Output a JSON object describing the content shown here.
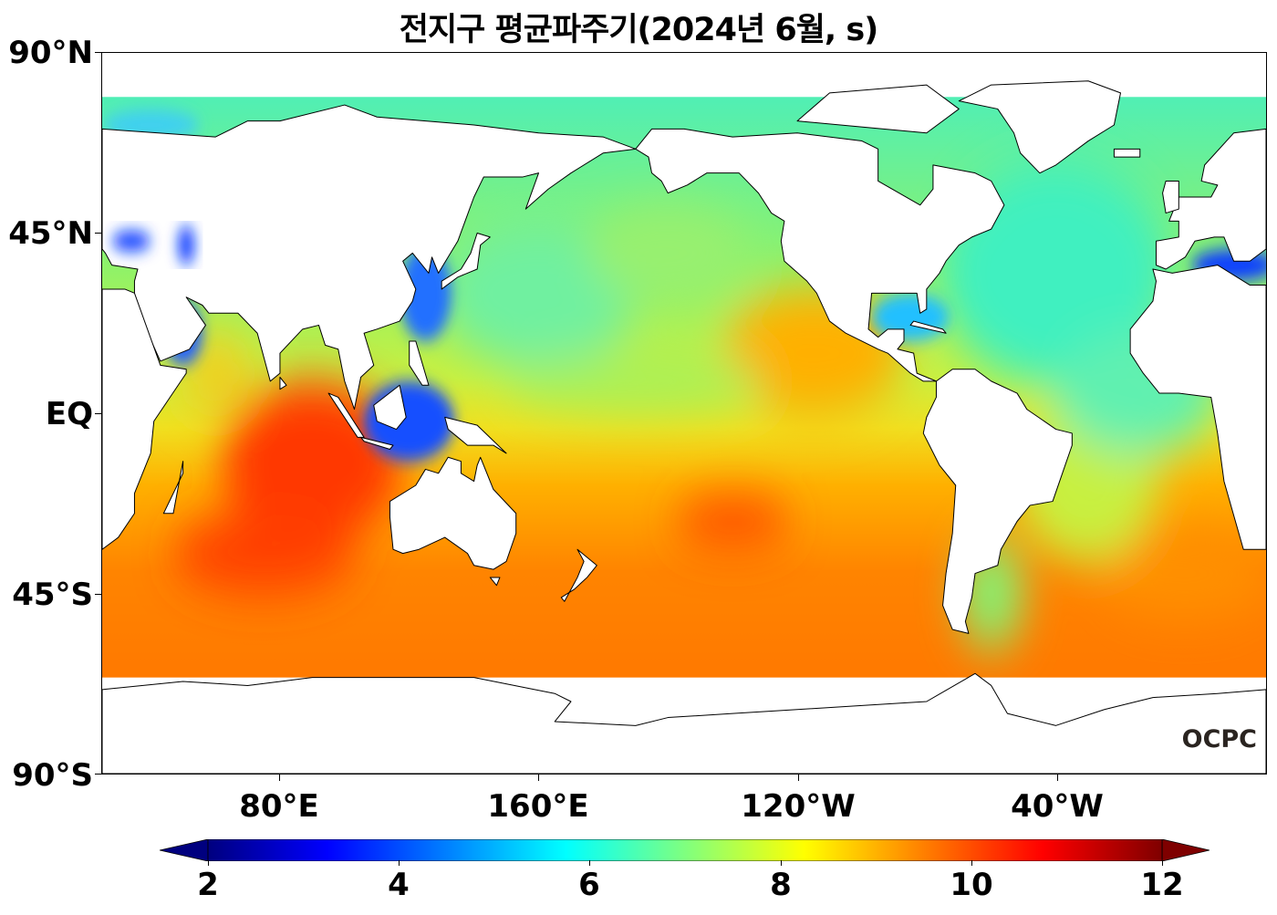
{
  "title": "전지구 평균파주기(2024년 6월, s)",
  "y_axis": {
    "ticks": [
      "90°N",
      "45°N",
      "EQ",
      "45°S",
      "90°S"
    ]
  },
  "x_axis": {
    "ticks": [
      "80°E",
      "160°E",
      "120°W",
      "40°W"
    ]
  },
  "logo": "OCPC",
  "colorbar": {
    "ticks": [
      "2",
      "4",
      "6",
      "8",
      "10",
      "12"
    ],
    "min": 2,
    "max": 12,
    "extend": "both",
    "colormap": "jet",
    "unit": "s"
  },
  "colors": {
    "low": "#00007f",
    "mid": "#7fff7f",
    "high": "#7f0000",
    "land": "#ffffff",
    "coast": "#000000"
  }
}
